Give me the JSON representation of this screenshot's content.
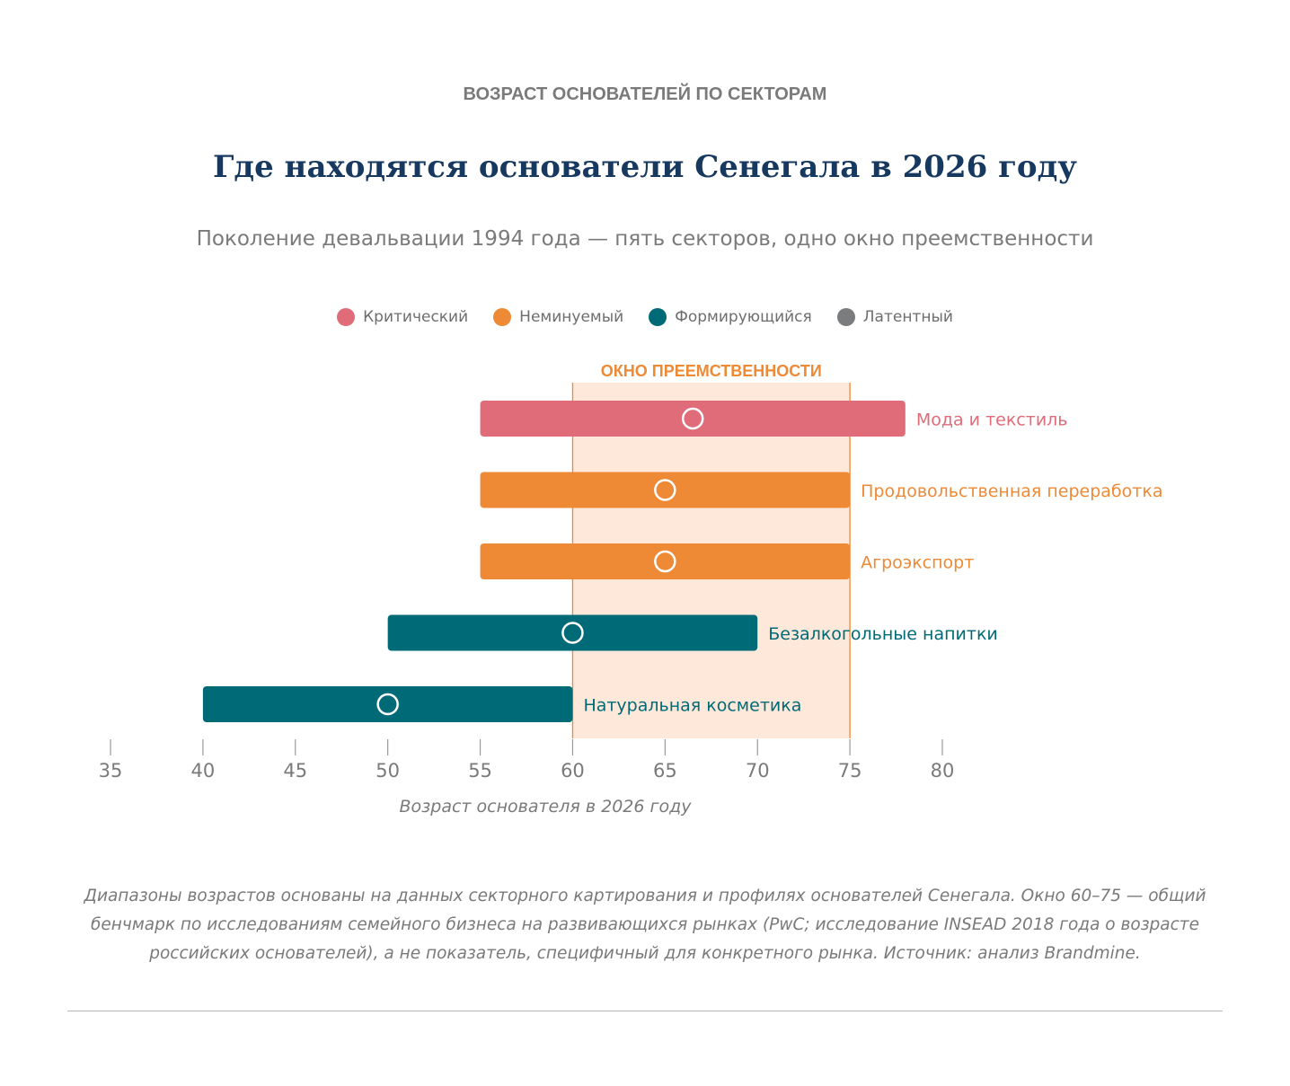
{
  "header": {
    "kicker": "ВОЗРАСТ ОСНОВАТЕЛЕЙ ПО СЕКТОРАМ",
    "title": "Где находятся основатели Сенегала в 2026 году",
    "subtitle": "Поколение девальвации 1994 года — пять секторов, одно окно преемственности"
  },
  "legend": [
    {
      "label": "Критический",
      "color": "#e06c7a"
    },
    {
      "label": "Неминуемый",
      "color": "#ee8a35"
    },
    {
      "label": "Формирующийся",
      "color": "#006a77"
    },
    {
      "label": "Латентный",
      "color": "#7b7c7e"
    }
  ],
  "chart_data": {
    "type": "range-bar",
    "xlabel": "Возраст основателя в 2026 году",
    "xlim": [
      35,
      80
    ],
    "ticks": [
      35,
      40,
      45,
      50,
      55,
      60,
      65,
      70,
      75,
      80
    ],
    "window": {
      "label": "ОКНО ПРЕЕМСТВЕННОСТИ",
      "from": 60,
      "to": 75,
      "color": "#ee8a35",
      "fill": "#fde8d9"
    },
    "series": [
      {
        "name": "Мода и текстиль",
        "category": "Критический",
        "min": 55,
        "max": 78,
        "median": 66.5,
        "color": "#e06c7a"
      },
      {
        "name": "Продовольственная переработка",
        "category": "Неминуемый",
        "min": 55,
        "max": 75,
        "median": 65,
        "color": "#ee8a35"
      },
      {
        "name": "Агроэкспорт",
        "category": "Неминуемый",
        "min": 55,
        "max": 75,
        "median": 65,
        "color": "#ee8a35"
      },
      {
        "name": "Безалкогольные напитки",
        "category": "Формирующийся",
        "min": 50,
        "max": 70,
        "median": 60,
        "color": "#006a77"
      },
      {
        "name": "Натуральная косметика",
        "category": "Формирующийся",
        "min": 40,
        "max": 60,
        "median": 50,
        "color": "#006a77"
      }
    ]
  },
  "footer": {
    "note": "Диапазоны возрастов основаны на данных секторного картирования и профилях основателей Сенегала. Окно 60–75 — общий бенчмарк по исследованиям семейного бизнеса на развивающихся рынках (PwC; исследование INSEAD 2018 года о возрасте российских основателей), а не показатель, специфичный для конкретного рынка. Источник: анализ Brandmine."
  }
}
